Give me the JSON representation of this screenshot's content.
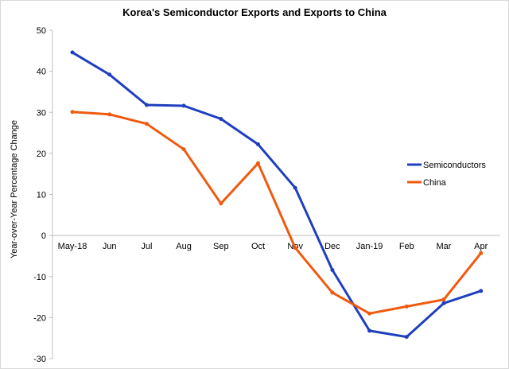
{
  "chart_data": {
    "type": "line",
    "title": "Korea's Semiconductor Exports and Exports to China",
    "ylabel": "Year-over-Year Percentage Change",
    "xlabel": "",
    "categories": [
      "May-18",
      "Jun",
      "Jul",
      "Aug",
      "Sep",
      "Oct",
      "Nov",
      "Dec",
      "Jan-19",
      "Feb",
      "Mar",
      "Apr"
    ],
    "ylim": [
      -30,
      50
    ],
    "yticks": [
      50,
      40,
      30,
      20,
      10,
      0,
      -10,
      -20,
      -30
    ],
    "grid": false,
    "legend_placement": "right",
    "series": [
      {
        "name": "Semiconductors",
        "color": "#1f3fbf",
        "values": [
          44.6,
          39.2,
          31.8,
          31.6,
          28.4,
          22.2,
          11.6,
          -8.4,
          -23.2,
          -24.7,
          -16.5,
          -13.5
        ]
      },
      {
        "name": "China",
        "color": "#ef5a0f",
        "values": [
          30.1,
          29.5,
          27.2,
          21.0,
          7.8,
          17.6,
          -3.0,
          -13.9,
          -19.0,
          -17.3,
          -15.6,
          -4.3
        ]
      }
    ]
  }
}
